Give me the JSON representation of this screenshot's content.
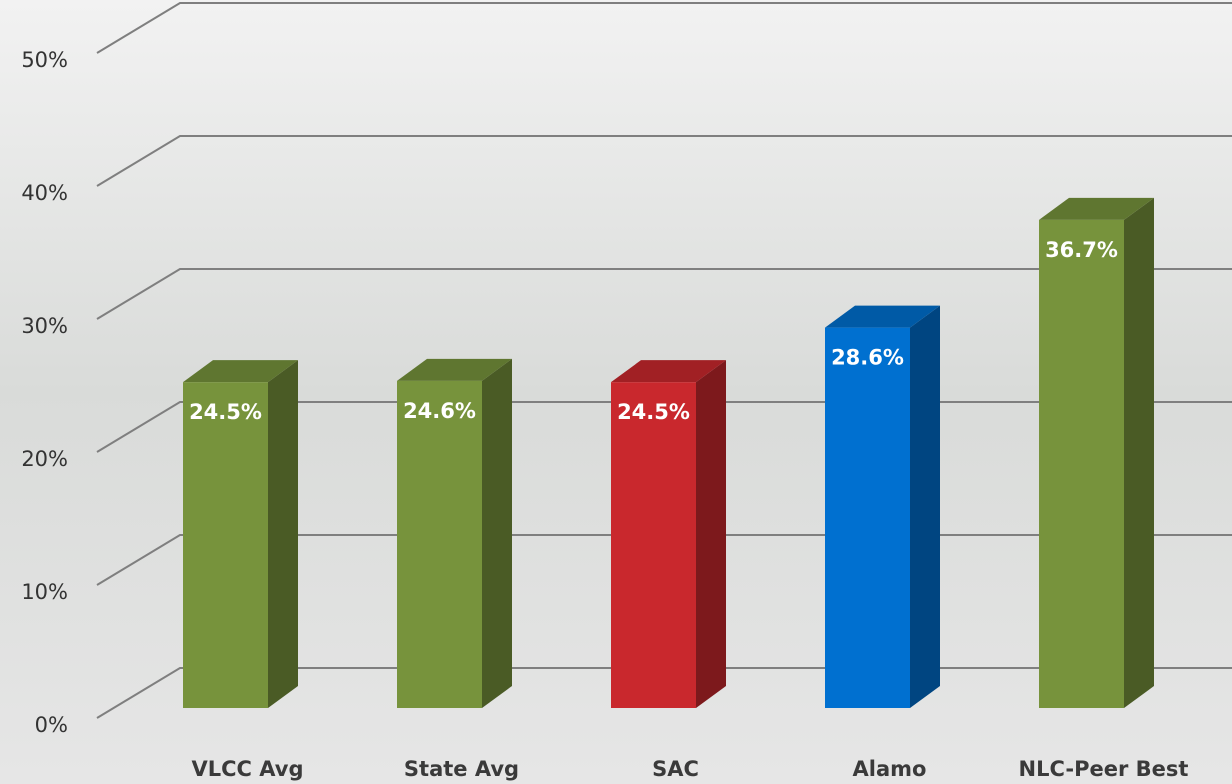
{
  "chart_data": {
    "type": "bar3d",
    "categories": [
      "VLCC Avg",
      "State Avg",
      "SAC",
      "Alamo",
      "NLC-Peer Best"
    ],
    "values": [
      24.5,
      24.6,
      24.5,
      28.6,
      36.7
    ],
    "value_labels": [
      "24.5%",
      "24.6%",
      "24.5%",
      "28.6%",
      "36.7%"
    ],
    "colors": [
      "#77933c",
      "#77933c",
      "#c9282d",
      "#0070d0",
      "#77933c"
    ],
    "ylim": [
      0,
      50
    ],
    "yticks": [
      {
        "value": 0,
        "label": "0%"
      },
      {
        "value": 10,
        "label": "10%"
      },
      {
        "value": 20,
        "label": "20%"
      },
      {
        "value": 30,
        "label": "30%"
      },
      {
        "value": 40,
        "label": "40%"
      },
      {
        "value": 50,
        "label": "50%"
      }
    ],
    "grid": true
  }
}
